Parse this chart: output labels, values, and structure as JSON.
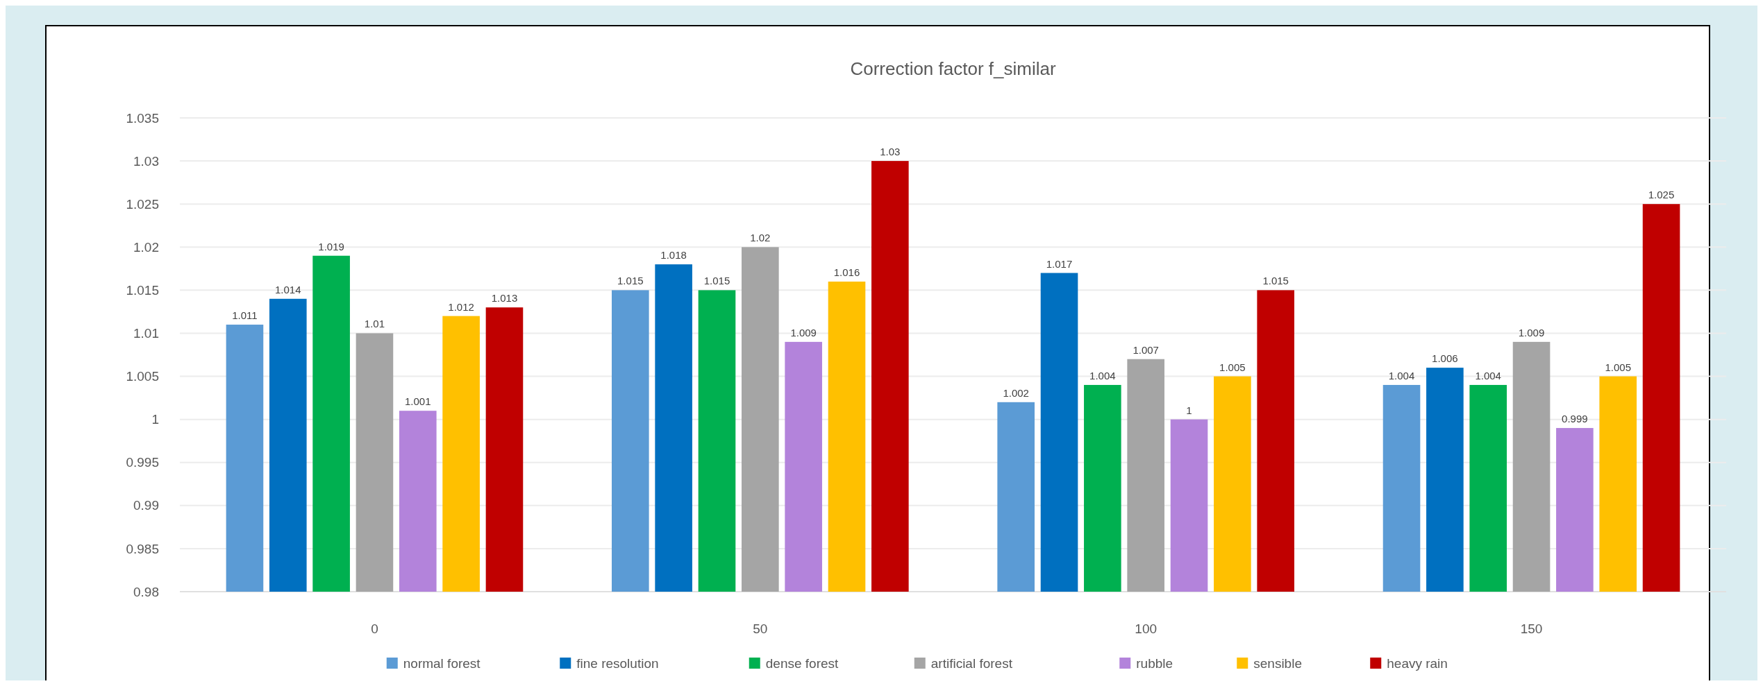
{
  "chart_data": {
    "type": "bar",
    "title": "Correction factor f_similar",
    "categories": [
      "0",
      "50",
      "100",
      "150"
    ],
    "series": [
      {
        "name": "normal forest",
        "color": "#5b9bd5",
        "values": [
          1.011,
          1.015,
          1.002,
          1.004
        ]
      },
      {
        "name": "fine resolution",
        "color": "#0070c0",
        "values": [
          1.014,
          1.018,
          1.017,
          1.006
        ]
      },
      {
        "name": "dense forest",
        "color": "#00b050",
        "values": [
          1.019,
          1.015,
          1.004,
          1.004
        ]
      },
      {
        "name": "artificial forest",
        "color": "#a5a5a5",
        "values": [
          1.01,
          1.02,
          1.007,
          1.009
        ]
      },
      {
        "name": "rubble",
        "color": "#b383db",
        "values": [
          1.001,
          1.009,
          1,
          0.999
        ]
      },
      {
        "name": "sensible",
        "color": "#ffc000",
        "values": [
          1.012,
          1.016,
          1.005,
          1.005
        ]
      },
      {
        "name": "heavy rain",
        "color": "#c00000",
        "values": [
          1.013,
          1.03,
          1.015,
          1.025
        ]
      }
    ],
    "ylim": [
      0.98,
      1.035
    ],
    "yticks": [
      0.98,
      0.985,
      0.99,
      0.995,
      1,
      1.005,
      1.01,
      1.015,
      1.02,
      1.025,
      1.03,
      1.035
    ],
    "grid": "y",
    "legend": "bottom",
    "data_labels": true
  }
}
